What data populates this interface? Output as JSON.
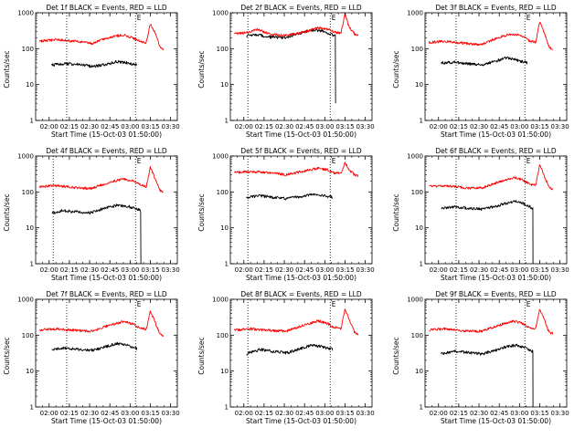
{
  "figure": {
    "start_time_label": "Start Time (15-Oct-03 01:50:00)",
    "y_axis_label": "Counts/sec",
    "marker_label": "E",
    "colors": {
      "events": "#000000",
      "lld": "#ff0000",
      "axes": "#000000"
    }
  },
  "chart_data": [
    {
      "type": "line",
      "detector": "1f",
      "title": "Det 1f BLACK = Events, RED = LLD",
      "xlabel": "Start Time (15-Oct-03 01:50:00)",
      "ylabel": "Counts/sec",
      "x_range_min": [
        0,
        105
      ],
      "yscale": "log",
      "ylim": [
        1,
        1000
      ],
      "x_tick_labels": [
        "02:00",
        "02:15",
        "02:30",
        "02:45",
        "03:00",
        "03:15",
        "03:30"
      ],
      "x_tick_values_min": [
        10,
        25,
        40,
        55,
        70,
        85,
        100
      ],
      "y_tick_labels": [
        "1",
        "10",
        "100",
        "1000"
      ],
      "y_tick_values": [
        1,
        10,
        100,
        1000
      ],
      "dotted_vlines_min": [
        23,
        74
      ],
      "marker_label": "E",
      "marker_min": 78,
      "series": [
        {
          "name": "Events",
          "color": "#000000",
          "start_min": 12,
          "end_min": 75,
          "x_min": [
            12,
            22,
            32,
            42,
            52,
            60,
            68,
            75
          ],
          "values": [
            35,
            38,
            36,
            32,
            36,
            44,
            40,
            35
          ],
          "dropout": null
        },
        {
          "name": "LLD",
          "color": "#ff0000",
          "start_min": 3,
          "end_min": 95,
          "x_min": [
            3,
            15,
            30,
            42,
            55,
            65,
            72,
            77,
            82,
            85,
            88,
            92,
            95
          ],
          "values": [
            160,
            180,
            160,
            140,
            210,
            240,
            200,
            160,
            150,
            500,
            300,
            120,
            90
          ]
        }
      ]
    },
    {
      "type": "line",
      "detector": "2f",
      "title": "Det 2f BLACK = Events, RED = LLD",
      "xlabel": "Start Time (15-Oct-03 01:50:00)",
      "ylabel": "Counts/sec",
      "x_range_min": [
        0,
        105
      ],
      "yscale": "log",
      "ylim": [
        1,
        1000
      ],
      "x_tick_labels": [
        "02:00",
        "02:15",
        "02:30",
        "02:45",
        "03:00",
        "03:15",
        "03:30"
      ],
      "x_tick_values_min": [
        10,
        25,
        40,
        55,
        70,
        85,
        100
      ],
      "y_tick_labels": [
        "1",
        "10",
        "100",
        "1000"
      ],
      "y_tick_values": [
        1,
        10,
        100,
        1000
      ],
      "dotted_vlines_min": [
        13,
        74
      ],
      "marker_label": "E",
      "marker_min": 78,
      "series": [
        {
          "name": "Events",
          "color": "#000000",
          "start_min": 12,
          "end_min": 78,
          "x_min": [
            12,
            20,
            30,
            40,
            50,
            60,
            68,
            74,
            78
          ],
          "values": [
            230,
            240,
            210,
            200,
            260,
            330,
            310,
            250,
            230
          ],
          "dropout": {
            "at_min": 78,
            "to_value": 3
          }
        },
        {
          "name": "LLD",
          "color": "#ff0000",
          "start_min": 3,
          "end_min": 95,
          "x_min": [
            3,
            12,
            20,
            30,
            40,
            55,
            65,
            72,
            77,
            82,
            85,
            88,
            92,
            95
          ],
          "values": [
            260,
            280,
            340,
            250,
            230,
            290,
            380,
            350,
            290,
            270,
            950,
            400,
            260,
            230
          ]
        }
      ]
    },
    {
      "type": "line",
      "detector": "3f",
      "title": "Det 3f BLACK = Events, RED = LLD",
      "xlabel": "Start Time (15-Oct-03 01:50:00)",
      "ylabel": "Counts/sec",
      "x_range_min": [
        0,
        105
      ],
      "yscale": "log",
      "ylim": [
        1,
        1000
      ],
      "x_tick_labels": [
        "02:00",
        "02:15",
        "02:30",
        "02:45",
        "03:00",
        "03:15",
        "03:30"
      ],
      "x_tick_values_min": [
        10,
        25,
        40,
        55,
        70,
        85,
        100
      ],
      "y_tick_labels": [
        "1",
        "10",
        "100",
        "1000"
      ],
      "y_tick_values": [
        1,
        10,
        100,
        1000
      ],
      "dotted_vlines_min": [
        23,
        74
      ],
      "marker_label": "E",
      "marker_min": 78,
      "series": [
        {
          "name": "Events",
          "color": "#000000",
          "start_min": 12,
          "end_min": 76,
          "x_min": [
            12,
            22,
            32,
            42,
            52,
            60,
            68,
            76
          ],
          "values": [
            40,
            42,
            38,
            35,
            45,
            55,
            48,
            40
          ],
          "dropout": null
        },
        {
          "name": "LLD",
          "color": "#ff0000",
          "start_min": 3,
          "end_min": 95,
          "x_min": [
            3,
            15,
            30,
            42,
            55,
            65,
            72,
            77,
            82,
            85,
            88,
            92,
            95
          ],
          "values": [
            150,
            160,
            140,
            130,
            210,
            260,
            220,
            170,
            150,
            550,
            300,
            110,
            90
          ]
        }
      ]
    },
    {
      "type": "line",
      "detector": "4f",
      "title": "Det 4f BLACK = Events, RED = LLD",
      "xlabel": "Start Time (15-Oct-03 01:50:00)",
      "ylabel": "Counts/sec",
      "x_range_min": [
        0,
        105
      ],
      "yscale": "log",
      "ylim": [
        1,
        1000
      ],
      "x_tick_labels": [
        "02:00",
        "02:15",
        "02:30",
        "02:45",
        "03:00",
        "03:15",
        "03:30"
      ],
      "x_tick_values_min": [
        10,
        25,
        40,
        55,
        70,
        85,
        100
      ],
      "y_tick_labels": [
        "1",
        "10",
        "100",
        "1000"
      ],
      "y_tick_values": [
        1,
        10,
        100,
        1000
      ],
      "dotted_vlines_min": [
        13,
        74
      ],
      "marker_label": "E",
      "marker_min": 78,
      "series": [
        {
          "name": "Events",
          "color": "#000000",
          "start_min": 12,
          "end_min": 78,
          "x_min": [
            12,
            20,
            30,
            40,
            50,
            60,
            68,
            74,
            78
          ],
          "values": [
            25,
            30,
            28,
            26,
            34,
            42,
            40,
            35,
            30
          ],
          "dropout": {
            "at_min": 78,
            "to_value": 1
          }
        },
        {
          "name": "LLD",
          "color": "#ff0000",
          "start_min": 3,
          "end_min": 95,
          "x_min": [
            3,
            15,
            30,
            42,
            55,
            65,
            72,
            77,
            82,
            85,
            88,
            92,
            95
          ],
          "values": [
            140,
            150,
            130,
            125,
            190,
            230,
            200,
            160,
            140,
            500,
            260,
            110,
            100
          ]
        }
      ]
    },
    {
      "type": "line",
      "detector": "5f",
      "title": "Det 5f BLACK = Events, RED = LLD",
      "xlabel": "Start Time (15-Oct-03 01:50:00)",
      "ylabel": "Counts/sec",
      "x_range_min": [
        0,
        105
      ],
      "yscale": "log",
      "ylim": [
        1,
        1000
      ],
      "x_tick_labels": [
        "02:00",
        "02:15",
        "02:30",
        "02:45",
        "03:00",
        "03:15",
        "03:30"
      ],
      "x_tick_values_min": [
        10,
        25,
        40,
        55,
        70,
        85,
        100
      ],
      "y_tick_labels": [
        "1",
        "10",
        "100",
        "1000"
      ],
      "y_tick_values": [
        1,
        10,
        100,
        1000
      ],
      "dotted_vlines_min": [
        13,
        74
      ],
      "marker_label": "E",
      "marker_min": 78,
      "series": [
        {
          "name": "Events",
          "color": "#000000",
          "start_min": 12,
          "end_min": 76,
          "x_min": [
            12,
            22,
            32,
            42,
            52,
            60,
            68,
            76
          ],
          "values": [
            70,
            78,
            70,
            65,
            75,
            85,
            80,
            72
          ],
          "dropout": null
        },
        {
          "name": "LLD",
          "color": "#ff0000",
          "start_min": 3,
          "end_min": 95,
          "x_min": [
            3,
            15,
            30,
            42,
            55,
            65,
            72,
            77,
            82,
            85,
            88,
            92,
            95
          ],
          "values": [
            350,
            370,
            340,
            300,
            380,
            460,
            420,
            340,
            330,
            650,
            420,
            300,
            270
          ]
        }
      ]
    },
    {
      "type": "line",
      "detector": "6f",
      "title": "Det 6f BLACK = Events, RED = LLD",
      "xlabel": "Start Time (15-Oct-03 01:50:00)",
      "ylabel": "Counts/sec",
      "x_range_min": [
        0,
        105
      ],
      "yscale": "log",
      "ylim": [
        1,
        1000
      ],
      "x_tick_labels": [
        "02:00",
        "02:15",
        "02:30",
        "02:45",
        "03:00",
        "03:15",
        "03:30"
      ],
      "x_tick_values_min": [
        10,
        25,
        40,
        55,
        70,
        85,
        100
      ],
      "y_tick_labels": [
        "1",
        "10",
        "100",
        "1000"
      ],
      "y_tick_values": [
        1,
        10,
        100,
        1000
      ],
      "dotted_vlines_min": [
        23,
        74
      ],
      "marker_label": "E",
      "marker_min": 78,
      "series": [
        {
          "name": "Events",
          "color": "#000000",
          "start_min": 12,
          "end_min": 80,
          "x_min": [
            12,
            22,
            32,
            42,
            52,
            60,
            68,
            74,
            80
          ],
          "values": [
            35,
            38,
            35,
            33,
            40,
            48,
            55,
            45,
            35
          ],
          "dropout": {
            "at_min": 80,
            "to_value": 1
          }
        },
        {
          "name": "LLD",
          "color": "#ff0000",
          "start_min": 3,
          "end_min": 95,
          "x_min": [
            3,
            15,
            30,
            42,
            55,
            65,
            72,
            77,
            82,
            85,
            88,
            92,
            95
          ],
          "values": [
            140,
            150,
            130,
            130,
            190,
            250,
            220,
            170,
            150,
            600,
            300,
            130,
            120
          ]
        }
      ]
    },
    {
      "type": "line",
      "detector": "7f",
      "title": "Det 7f BLACK = Events, RED = LLD",
      "xlabel": "Start Time (15-Oct-03 01:50:00)",
      "ylabel": "Counts/sec",
      "x_range_min": [
        0,
        105
      ],
      "yscale": "log",
      "ylim": [
        1,
        1000
      ],
      "x_tick_labels": [
        "02:00",
        "02:15",
        "02:30",
        "02:45",
        "03:00",
        "03:15",
        "03:30"
      ],
      "x_tick_values_min": [
        10,
        25,
        40,
        55,
        70,
        85,
        100
      ],
      "y_tick_labels": [
        "1",
        "10",
        "100",
        "1000"
      ],
      "y_tick_values": [
        1,
        10,
        100,
        1000
      ],
      "dotted_vlines_min": [
        23,
        74
      ],
      "marker_label": "E",
      "marker_min": 78,
      "series": [
        {
          "name": "Events",
          "color": "#000000",
          "start_min": 12,
          "end_min": 75,
          "x_min": [
            12,
            22,
            32,
            42,
            52,
            60,
            68,
            75
          ],
          "values": [
            40,
            44,
            40,
            38,
            48,
            58,
            52,
            42
          ],
          "dropout": null
        },
        {
          "name": "LLD",
          "color": "#ff0000",
          "start_min": 3,
          "end_min": 95,
          "x_min": [
            3,
            15,
            30,
            42,
            55,
            65,
            72,
            77,
            82,
            85,
            88,
            92,
            95
          ],
          "values": [
            140,
            150,
            135,
            130,
            190,
            240,
            210,
            160,
            145,
            480,
            260,
            110,
            95
          ]
        }
      ]
    },
    {
      "type": "line",
      "detector": "8f",
      "title": "Det 8f BLACK = Events, RED = LLD",
      "xlabel": "Start Time (15-Oct-03 01:50:00)",
      "ylabel": "Counts/sec",
      "x_range_min": [
        0,
        105
      ],
      "yscale": "log",
      "ylim": [
        1,
        1000
      ],
      "x_tick_labels": [
        "02:00",
        "02:15",
        "02:30",
        "02:45",
        "03:00",
        "03:15",
        "03:30"
      ],
      "x_tick_values_min": [
        10,
        25,
        40,
        55,
        70,
        85,
        100
      ],
      "y_tick_labels": [
        "1",
        "10",
        "100",
        "1000"
      ],
      "y_tick_values": [
        1,
        10,
        100,
        1000
      ],
      "dotted_vlines_min": [
        13,
        74
      ],
      "marker_label": "E",
      "marker_min": 78,
      "series": [
        {
          "name": "Events",
          "color": "#000000",
          "start_min": 12,
          "end_min": 76,
          "x_min": [
            12,
            22,
            32,
            42,
            52,
            60,
            68,
            76
          ],
          "values": [
            30,
            40,
            35,
            32,
            42,
            52,
            48,
            40
          ],
          "dropout": null
        },
        {
          "name": "LLD",
          "color": "#ff0000",
          "start_min": 3,
          "end_min": 95,
          "x_min": [
            3,
            15,
            30,
            42,
            55,
            65,
            72,
            77,
            82,
            85,
            88,
            92,
            95
          ],
          "values": [
            140,
            150,
            135,
            130,
            195,
            250,
            215,
            165,
            150,
            550,
            280,
            120,
            100
          ]
        }
      ]
    },
    {
      "type": "line",
      "detector": "9f",
      "title": "Det 9f BLACK = Events, RED = LLD",
      "xlabel": "Start Time (15-Oct-03 01:50:00)",
      "ylabel": "Counts/sec",
      "x_range_min": [
        0,
        105
      ],
      "yscale": "log",
      "ylim": [
        1,
        1000
      ],
      "x_tick_labels": [
        "02:00",
        "02:15",
        "02:30",
        "02:45",
        "03:00",
        "03:15",
        "03:30"
      ],
      "x_tick_values_min": [
        10,
        25,
        40,
        55,
        70,
        85,
        100
      ],
      "y_tick_labels": [
        "1",
        "10",
        "100",
        "1000"
      ],
      "y_tick_values": [
        1,
        10,
        100,
        1000
      ],
      "dotted_vlines_min": [
        23,
        74
      ],
      "marker_label": "E",
      "marker_min": 78,
      "series": [
        {
          "name": "Events",
          "color": "#000000",
          "start_min": 12,
          "end_min": 80,
          "x_min": [
            12,
            22,
            32,
            42,
            52,
            60,
            68,
            74,
            80
          ],
          "values": [
            30,
            36,
            33,
            30,
            38,
            48,
            52,
            45,
            35
          ],
          "dropout": {
            "at_min": 80,
            "to_value": 1
          }
        },
        {
          "name": "LLD",
          "color": "#ff0000",
          "start_min": 3,
          "end_min": 95,
          "x_min": [
            3,
            15,
            30,
            42,
            55,
            65,
            72,
            77,
            82,
            85,
            88,
            92,
            95
          ],
          "values": [
            140,
            150,
            130,
            130,
            190,
            245,
            215,
            165,
            150,
            560,
            290,
            120,
            110
          ]
        }
      ]
    }
  ]
}
